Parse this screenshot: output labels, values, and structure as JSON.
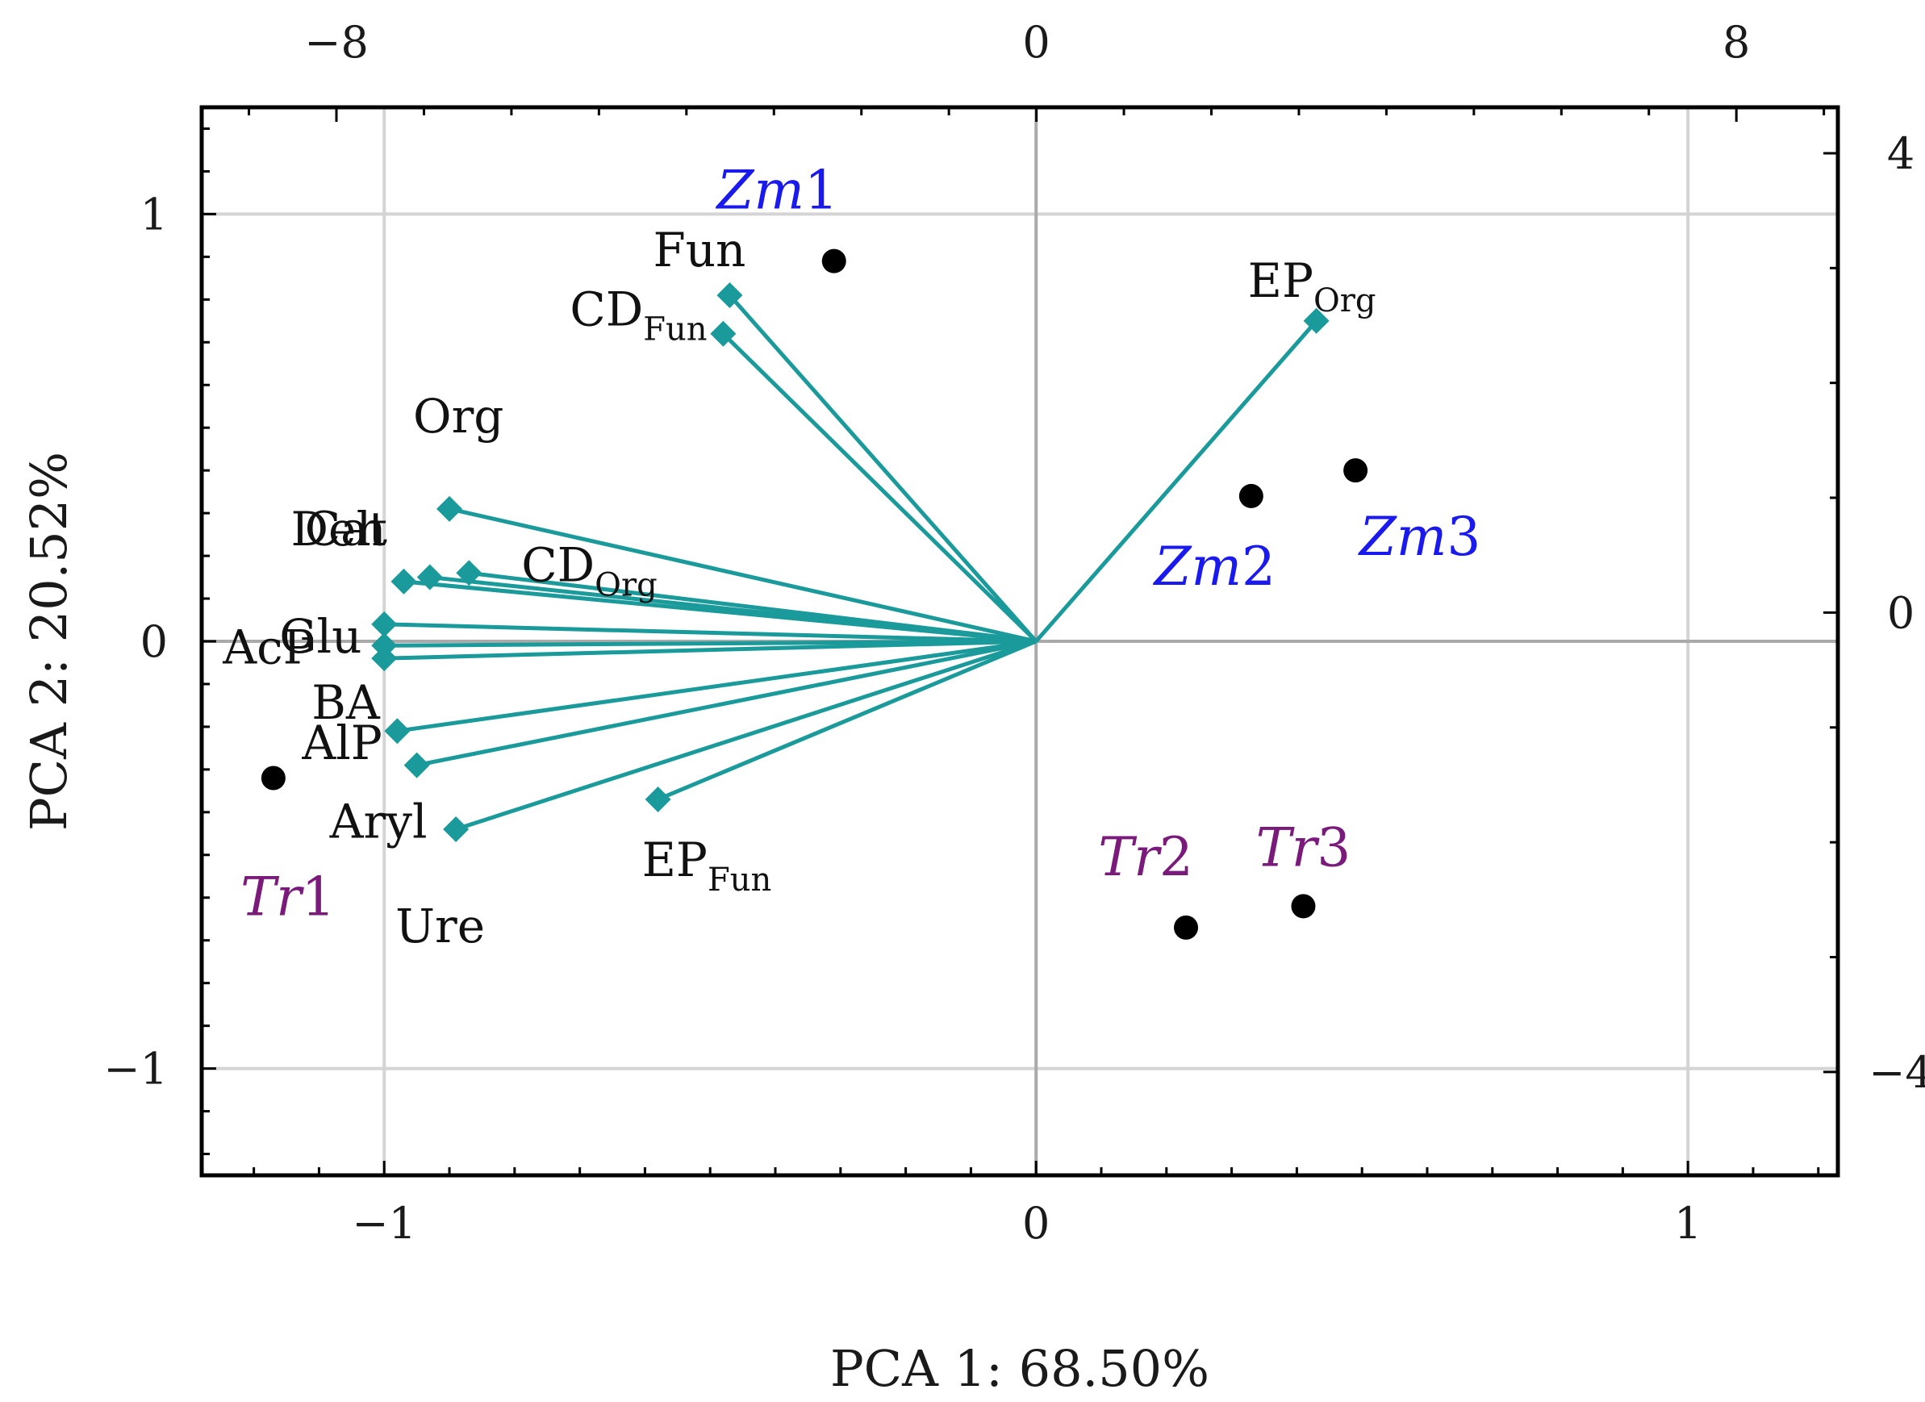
{
  "chart_data": {
    "type": "scatter",
    "subtype": "pca-biplot",
    "xlabel": "PCA 1: 68.50%",
    "ylabel": "PCA 2: 20.52%",
    "xlim": [
      -1.28,
      1.23
    ],
    "ylim": [
      -1.25,
      1.25
    ],
    "x_ticks": [
      "-1",
      "0",
      "1"
    ],
    "y_ticks": [
      "1",
      "0",
      "-1"
    ],
    "top_axis": {
      "lim": [
        -9.54,
        9.16
      ],
      "ticks": [
        "-8",
        "0",
        "8"
      ]
    },
    "right_axis": {
      "lim": [
        -4.9,
        4.4
      ],
      "ticks": [
        "4",
        "0",
        "-4"
      ]
    },
    "grid": true,
    "colors": {
      "vector": "#1a9a9a",
      "zm": "#1a1aee",
      "tr": "#7a1a7a",
      "point": "#000000",
      "grid": "#d4d4d4",
      "zero_line": "#aaaaaa"
    },
    "variables": [
      {
        "name": "Fun",
        "sub": "",
        "x": -0.47,
        "y": 0.81
      },
      {
        "name": "CD",
        "sub": "Fun",
        "x": -0.48,
        "y": 0.72
      },
      {
        "name": "EP",
        "sub": "Org",
        "x": 0.43,
        "y": 0.75
      },
      {
        "name": "Org",
        "sub": "",
        "x": -0.9,
        "y": 0.31
      },
      {
        "name": "CD",
        "sub": "Org",
        "x": -0.87,
        "y": 0.16
      },
      {
        "name": "Cat",
        "sub": "",
        "x": -0.93,
        "y": 0.15
      },
      {
        "name": "Deh",
        "sub": "",
        "x": -0.97,
        "y": 0.14
      },
      {
        "name": "Glu",
        "sub": "",
        "x": -1.0,
        "y": 0.04
      },
      {
        "name": "AcP",
        "sub": "",
        "x": -1.0,
        "y": -0.01
      },
      {
        "name": "BA",
        "sub": "",
        "x": -1.0,
        "y": -0.04
      },
      {
        "name": "AlP",
        "sub": "",
        "x": -0.98,
        "y": -0.21
      },
      {
        "name": "Aryl",
        "sub": "",
        "x": -0.95,
        "y": -0.29
      },
      {
        "name": "Ure",
        "sub": "",
        "x": -0.89,
        "y": -0.44
      },
      {
        "name": "EP",
        "sub": "Fun",
        "x": -0.58,
        "y": -0.37
      }
    ],
    "cases": [
      {
        "name": "Zm1",
        "group": "zm",
        "x": -0.31,
        "y": 0.89
      },
      {
        "name": "Zm2",
        "group": "zm",
        "x": 0.33,
        "y": 0.34
      },
      {
        "name": "Zm3",
        "group": "zm",
        "x": 0.49,
        "y": 0.4
      },
      {
        "name": "Tr1",
        "group": "tr",
        "x": -1.17,
        "y": -0.32
      },
      {
        "name": "Tr2",
        "group": "tr",
        "x": 0.23,
        "y": -0.67
      },
      {
        "name": "Tr3",
        "group": "tr",
        "x": 0.41,
        "y": -0.62
      }
    ]
  }
}
